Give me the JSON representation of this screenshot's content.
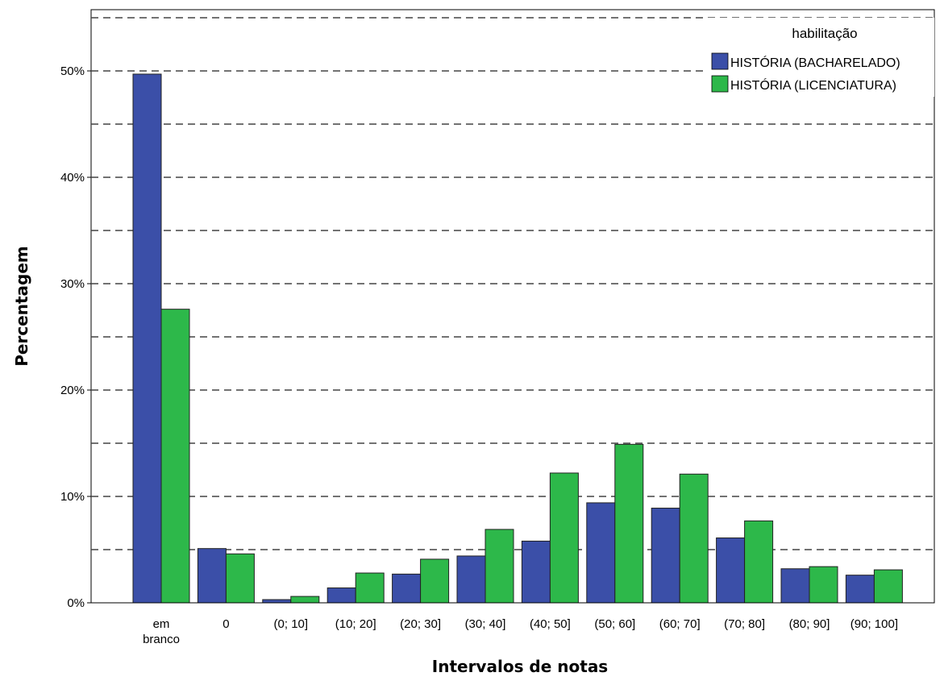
{
  "chart_data": {
    "type": "bar",
    "xlabel": "Intervalos de notas",
    "ylabel": "Percentagem",
    "ylim": [
      0,
      55
    ],
    "yticks": [
      {
        "value": 0,
        "label": "0%"
      },
      {
        "value": 10,
        "label": "10%"
      },
      {
        "value": 20,
        "label": "20%"
      },
      {
        "value": 30,
        "label": "30%"
      },
      {
        "value": 40,
        "label": "40%"
      },
      {
        "value": 50,
        "label": "50%"
      }
    ],
    "gridlines": [
      5,
      10,
      15,
      20,
      25,
      30,
      35,
      40,
      45,
      50,
      55
    ],
    "grid": true,
    "legend_position": "top-right",
    "legend_title": "habilitação",
    "categories": [
      [
        "em",
        "branco"
      ],
      [
        "0"
      ],
      [
        "(0; 10]"
      ],
      [
        "(10; 20]"
      ],
      [
        "(20; 30]"
      ],
      [
        "(30; 40]"
      ],
      [
        "(40; 50]"
      ],
      [
        "(50; 60]"
      ],
      [
        "(60; 70]"
      ],
      [
        "(70; 80]"
      ],
      [
        "(80; 90]"
      ],
      [
        "(90; 100]"
      ]
    ],
    "series": [
      {
        "name": "HISTÓRIA (BACHARELADO)",
        "color": "#3b4fa8",
        "values": [
          49.7,
          5.1,
          0.3,
          1.4,
          2.7,
          4.4,
          5.8,
          9.4,
          8.9,
          6.1,
          3.2,
          2.6
        ]
      },
      {
        "name": "HISTÓRIA (LICENCIATURA)",
        "color": "#2db84a",
        "values": [
          27.6,
          4.6,
          0.6,
          2.8,
          4.1,
          6.9,
          12.2,
          14.9,
          12.1,
          7.7,
          3.4,
          3.1
        ]
      }
    ]
  }
}
